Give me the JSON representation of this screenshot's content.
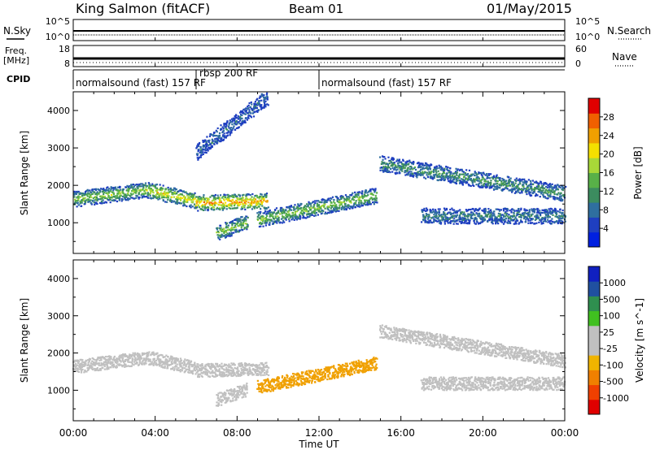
{
  "header": {
    "station": "King Salmon (fitACF)",
    "beam": "Beam 01",
    "date": "01/May/2015"
  },
  "top_panels": {
    "nsky_label": "N.Sky",
    "nsearch_label": "N.Search",
    "nsky_ticks": [
      "10^5",
      "10^0"
    ],
    "nsearch_ticks": [
      "10^5",
      "10^0"
    ],
    "freq_label_1": "Freq.",
    "freq_label_2": "[MHz]",
    "freq_ticks": [
      "18",
      "8"
    ],
    "nave_label": "Nave",
    "nave_ticks": [
      "60",
      "0"
    ],
    "cpid_label": "CPID",
    "cpid_segments": [
      {
        "label": "normalsound (fast) 157 RF",
        "start_hour": 0,
        "end_hour": 6
      },
      {
        "label": "rbsp 200 RF",
        "start_hour": 6,
        "end_hour": 12
      },
      {
        "label": "normalsound (fast) 157 RF",
        "start_hour": 12,
        "end_hour": 24
      }
    ]
  },
  "axes": {
    "x_ticks": [
      "00:00",
      "04:00",
      "08:00",
      "12:00",
      "16:00",
      "20:00",
      "00:00"
    ],
    "x_label": "Time UT",
    "y_label": "Slant Range [km]",
    "y_ticks": [
      "1000",
      "2000",
      "3000",
      "4000"
    ]
  },
  "colors": {
    "power_scale": [
      "#0020e0",
      "#1f3fc0",
      "#2f6f9f",
      "#3c8c5f",
      "#58b048",
      "#a8d838",
      "#f4e000",
      "#f0a000",
      "#f06000",
      "#e00000"
    ],
    "velocity_scale": [
      "#e00000",
      "#f04000",
      "#f08000",
      "#f0b400",
      "#c0c0c0",
      "#c0c0c0",
      "#40c020",
      "#2f8f4f",
      "#2050a0",
      "#1020c0"
    ]
  },
  "chart_data": [
    {
      "type": "heatmap",
      "name": "power",
      "title": "",
      "xlabel": "Time UT",
      "ylabel": "Slant Range [km]",
      "xlim_hours": [
        0,
        24
      ],
      "ylim_km": [
        180,
        4500
      ],
      "colorbar": {
        "label": "Power [dB]",
        "ticks": [
          "4",
          "8",
          "12",
          "16",
          "20",
          "24",
          "28"
        ],
        "range": [
          0,
          30
        ]
      },
      "echo_bands": [
        {
          "start_hour": 0.0,
          "end_hour": 3.6,
          "range_start_km": 1650,
          "range_end_km": 1900,
          "peak_db": 14
        },
        {
          "start_hour": 3.6,
          "end_hour": 6.0,
          "range_start_km": 1900,
          "range_end_km": 1600,
          "peak_db": 18
        },
        {
          "start_hour": 6.0,
          "end_hour": 9.5,
          "range_start_km": 1550,
          "range_end_km": 1600,
          "peak_db": 22
        },
        {
          "start_hour": 7.0,
          "end_hour": 8.5,
          "range_start_km": 750,
          "range_end_km": 1050,
          "peak_db": 14
        },
        {
          "start_hour": 9.0,
          "end_hour": 14.8,
          "range_start_km": 1100,
          "range_end_km": 1750,
          "peak_db": 14
        },
        {
          "start_hour": 15.0,
          "end_hour": 24.0,
          "range_start_km": 2600,
          "range_end_km": 1800,
          "peak_db": 10
        },
        {
          "start_hour": 6.0,
          "end_hour": 9.5,
          "range_start_km": 2900,
          "range_end_km": 4400,
          "peak_db": 6
        },
        {
          "start_hour": 17.0,
          "end_hour": 24.0,
          "range_start_km": 1200,
          "range_end_km": 1200,
          "peak_db": 8
        }
      ]
    },
    {
      "type": "heatmap",
      "name": "velocity",
      "title": "",
      "xlabel": "Time UT",
      "ylabel": "Slant Range [km]",
      "xlim_hours": [
        0,
        24
      ],
      "ylim_km": [
        180,
        4500
      ],
      "colorbar": {
        "label": "Velocity [m s^-1]",
        "ticks": [
          "1000",
          "500",
          "100",
          "25",
          "-25",
          "-100",
          "-500",
          "-1000"
        ]
      },
      "echo_bands": [
        {
          "start_hour": 0.0,
          "end_hour": 3.6,
          "range_start_km": 1650,
          "range_end_km": 1900,
          "velocity": 0
        },
        {
          "start_hour": 3.6,
          "end_hour": 6.0,
          "range_start_km": 1900,
          "range_end_km": 1600,
          "velocity": 0
        },
        {
          "start_hour": 6.0,
          "end_hour": 9.5,
          "range_start_km": 1550,
          "range_end_km": 1600,
          "velocity": 0
        },
        {
          "start_hour": 7.0,
          "end_hour": 8.5,
          "range_start_km": 750,
          "range_end_km": 1050,
          "velocity": 0
        },
        {
          "start_hour": 9.0,
          "end_hour": 14.8,
          "range_start_km": 1100,
          "range_end_km": 1750,
          "velocity": -150
        },
        {
          "start_hour": 15.0,
          "end_hour": 24.0,
          "range_start_km": 2600,
          "range_end_km": 1800,
          "velocity": 0
        },
        {
          "start_hour": 17.0,
          "end_hour": 24.0,
          "range_start_km": 1200,
          "range_end_km": 1200,
          "velocity": 0
        }
      ]
    }
  ]
}
